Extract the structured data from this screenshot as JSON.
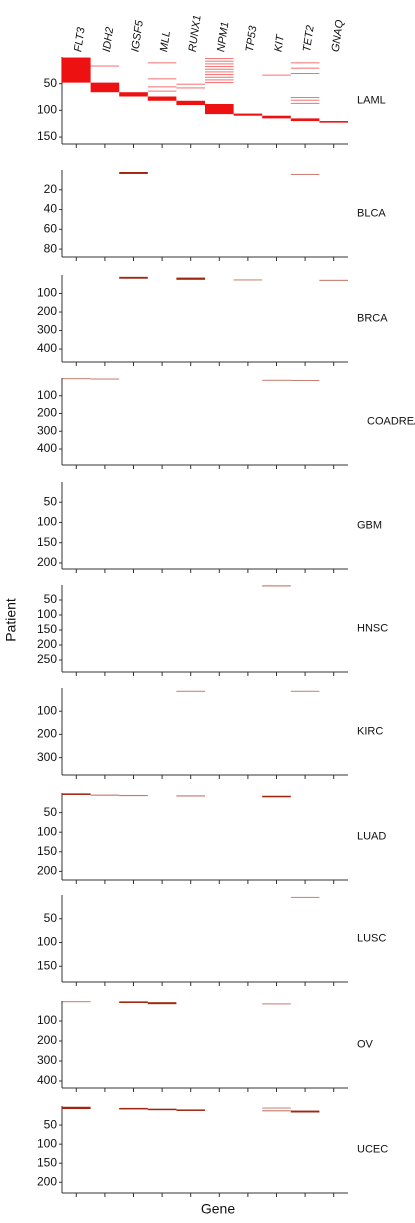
{
  "chart_data": {
    "type": "mutation-matrix",
    "x_label": "Gene",
    "y_label": "Patient",
    "categories": [
      "FLT3",
      "IDH2",
      "IGSF5",
      "MLL",
      "RUNX1",
      "NPM1",
      "TP53",
      "KIT",
      "TET2",
      "GNAQ"
    ],
    "panels": [
      {
        "name": "LAML",
        "color": "#ee1111",
        "ylim": [
          0,
          163
        ],
        "yticks": [
          50,
          100,
          150
        ],
        "marks": [
          {
            "gene": 0,
            "patients": [
              1,
              48
            ]
          },
          {
            "gene": 1,
            "patients": [
              48,
              66
            ]
          },
          {
            "gene": 1,
            "patients": [
              16,
              17
            ]
          },
          {
            "gene": 2,
            "patients": [
              66,
              74
            ]
          },
          {
            "gene": 3,
            "patients": [
              74,
              82
            ]
          },
          {
            "gene": 3,
            "patients": [
              10,
              11
            ]
          },
          {
            "gene": 3,
            "patients": [
              40,
              41
            ]
          },
          {
            "gene": 3,
            "patients": [
              55,
              56
            ]
          },
          {
            "gene": 3,
            "patients": [
              63,
              64
            ]
          },
          {
            "gene": 4,
            "patients": [
              82,
              90
            ]
          },
          {
            "gene": 4,
            "patients": [
              50,
              51
            ]
          },
          {
            "gene": 4,
            "patients": [
              57,
              58
            ]
          },
          {
            "gene": 5,
            "patients": [
              88,
              107
            ]
          },
          {
            "gene": 5,
            "patients": [
              2,
              3
            ]
          },
          {
            "gene": 5,
            "patients": [
              7,
              8
            ]
          },
          {
            "gene": 5,
            "patients": [
              12,
              13
            ]
          },
          {
            "gene": 5,
            "patients": [
              17,
              18
            ]
          },
          {
            "gene": 5,
            "patients": [
              22,
              23
            ]
          },
          {
            "gene": 5,
            "patients": [
              27,
              28
            ]
          },
          {
            "gene": 5,
            "patients": [
              32,
              33
            ]
          },
          {
            "gene": 5,
            "patients": [
              37,
              38
            ]
          },
          {
            "gene": 5,
            "patients": [
              42,
              43
            ]
          },
          {
            "gene": 5,
            "patients": [
              47,
              48
            ]
          },
          {
            "gene": 6,
            "patients": [
              106,
              110
            ]
          },
          {
            "gene": 7,
            "patients": [
              110,
              115
            ]
          },
          {
            "gene": 7,
            "patients": [
              33,
              34
            ]
          },
          {
            "gene": 8,
            "patients": [
              115,
              120
            ]
          },
          {
            "gene": 8,
            "patients": [
              10,
              11
            ]
          },
          {
            "gene": 8,
            "patients": [
              20,
              21
            ]
          },
          {
            "gene": 8,
            "patients": [
              30,
              31
            ]
          },
          {
            "gene": 8,
            "patients": [
              75,
              76
            ]
          },
          {
            "gene": 8,
            "patients": [
              80,
              81
            ]
          },
          {
            "gene": 8,
            "patients": [
              86,
              87
            ]
          },
          {
            "gene": 9,
            "patients": [
              120,
              123
            ]
          }
        ]
      },
      {
        "name": "BLCA",
        "color": "#a0260f",
        "ylim": [
          0,
          88
        ],
        "yticks": [
          20,
          40,
          60,
          80
        ],
        "marks": [
          {
            "gene": 2,
            "patients": [
              2,
              4
            ]
          },
          {
            "gene": 8,
            "patients": [
              4,
              5
            ]
          }
        ]
      },
      {
        "name": "BRCA",
        "color": "#a0260f",
        "ylim": [
          0,
          470
        ],
        "yticks": [
          100,
          200,
          300,
          400
        ],
        "marks": [
          {
            "gene": 2,
            "patients": [
              10,
              20
            ]
          },
          {
            "gene": 4,
            "patients": [
              14,
              26
            ]
          },
          {
            "gene": 6,
            "patients": [
              24,
              28
            ]
          },
          {
            "gene": 9,
            "patients": [
              26,
              32
            ]
          }
        ]
      },
      {
        "name": "COADREAD",
        "color": "#a0260f",
        "ylim": [
          0,
          490
        ],
        "yticks": [
          100,
          200,
          300,
          400
        ],
        "marks": [
          {
            "gene": 0,
            "patients": [
              1,
              5
            ]
          },
          {
            "gene": 1,
            "patients": [
              3,
              6
            ]
          },
          {
            "gene": 7,
            "patients": [
              10,
              15
            ]
          },
          {
            "gene": 8,
            "patients": [
              11,
              15
            ]
          }
        ]
      },
      {
        "name": "GBM",
        "color": "#a0260f",
        "ylim": [
          0,
          215
        ],
        "yticks": [
          50,
          100,
          150,
          200
        ],
        "marks": []
      },
      {
        "name": "HNSC",
        "color": "#a0260f",
        "ylim": [
          0,
          290
        ],
        "yticks": [
          50,
          100,
          150,
          200,
          250
        ],
        "marks": [
          {
            "gene": 7,
            "patients": [
              1,
              5
            ]
          }
        ]
      },
      {
        "name": "KIRC",
        "color": "#a0260f",
        "ylim": [
          0,
          375
        ],
        "yticks": [
          100,
          200,
          300
        ],
        "marks": [
          {
            "gene": 4,
            "patients": [
              12,
              15
            ]
          },
          {
            "gene": 8,
            "patients": [
              12,
              15
            ]
          }
        ]
      },
      {
        "name": "LUAD",
        "color": "#a0260f",
        "ylim": [
          0,
          222
        ],
        "yticks": [
          50,
          100,
          150,
          200
        ],
        "marks": [
          {
            "gene": 0,
            "patients": [
              1,
              5
            ]
          },
          {
            "gene": 1,
            "patients": [
              4,
              7
            ]
          },
          {
            "gene": 2,
            "patients": [
              5,
              8
            ]
          },
          {
            "gene": 4,
            "patients": [
              6,
              9
            ]
          },
          {
            "gene": 7,
            "patients": [
              7,
              11
            ]
          }
        ]
      },
      {
        "name": "LUSC",
        "color": "#a0260f",
        "ylim": [
          0,
          183
        ],
        "yticks": [
          50,
          100,
          150
        ],
        "marks": [
          {
            "gene": 8,
            "patients": [
              4,
              5
            ]
          }
        ]
      },
      {
        "name": "OV",
        "color": "#a0260f",
        "ylim": [
          0,
          435
        ],
        "yticks": [
          100,
          200,
          300,
          400
        ],
        "marks": [
          {
            "gene": 0,
            "patients": [
              1,
              3
            ]
          },
          {
            "gene": 2,
            "patients": [
              2,
              10
            ]
          },
          {
            "gene": 3,
            "patients": [
              6,
              16
            ]
          },
          {
            "gene": 7,
            "patients": [
              12,
              16
            ]
          }
        ]
      },
      {
        "name": "UCEC",
        "color": "#a0260f",
        "ylim": [
          0,
          228
        ],
        "yticks": [
          50,
          100,
          150,
          200
        ],
        "marks": [
          {
            "gene": 0,
            "patients": [
              2,
              8
            ]
          },
          {
            "gene": 2,
            "patients": [
              5,
              9
            ]
          },
          {
            "gene": 3,
            "patients": [
              7,
              11
            ]
          },
          {
            "gene": 4,
            "patients": [
              9,
              13
            ]
          },
          {
            "gene": 7,
            "patients": [
              4,
              6
            ]
          },
          {
            "gene": 7,
            "patients": [
              11,
              14
            ]
          },
          {
            "gene": 8,
            "patients": [
              12,
              17
            ]
          }
        ]
      }
    ]
  }
}
